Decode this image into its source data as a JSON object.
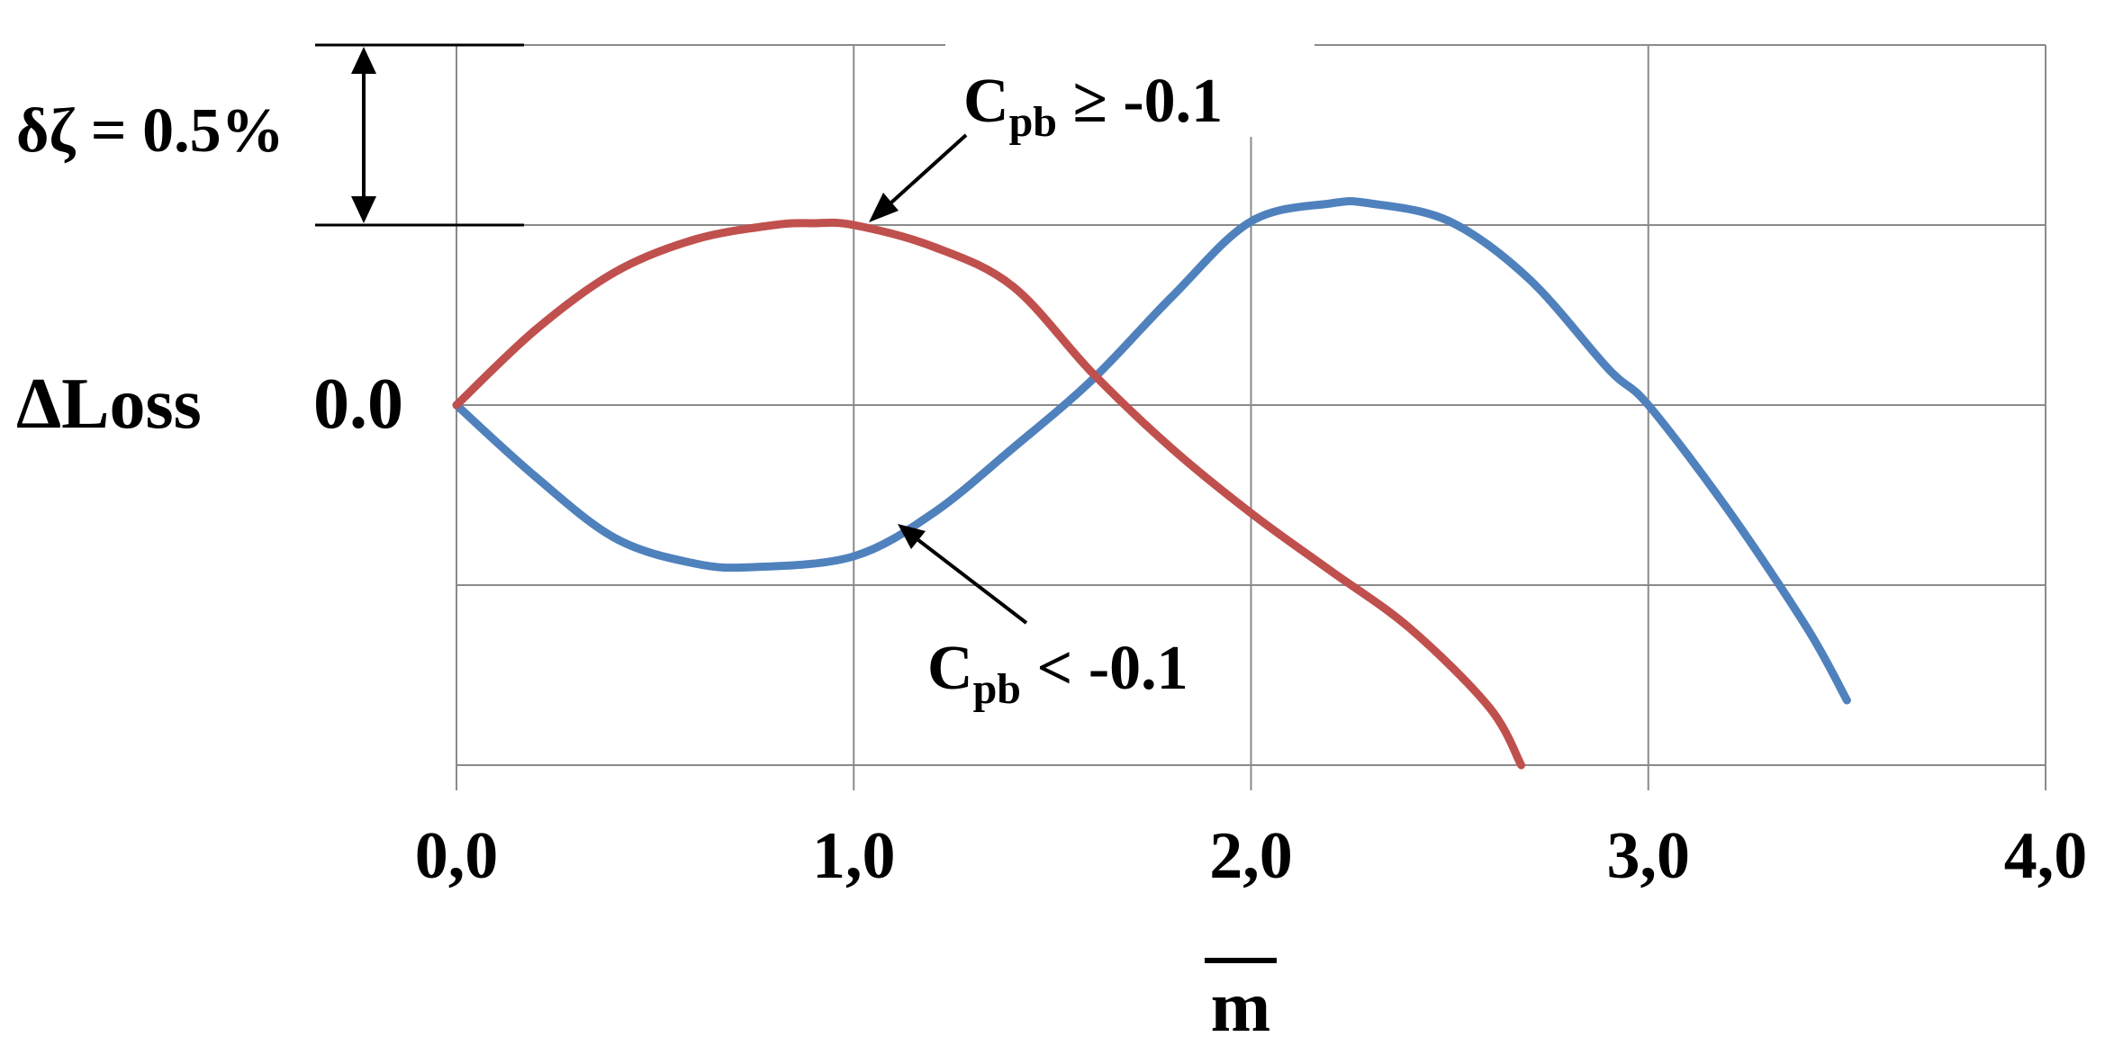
{
  "chart_data": {
    "type": "line",
    "title": "",
    "xlabel": "m",
    "ylabel": "ΔLoss",
    "xlim": [
      0,
      4
    ],
    "ylim": [
      -1.0,
      1.0
    ],
    "y_unit_note": "gridline spacing = δζ = 0.5%",
    "x_ticks": [
      "0,0",
      "1,0",
      "2,0",
      "3,0",
      "4,0"
    ],
    "y_zero_label": "0.0",
    "grid": true,
    "scale_annotation": {
      "label": "δζ = 0.5%",
      "value": 0.5
    },
    "series": [
      {
        "color": "#c0504d",
        "annotation": {
          "prefix": "C",
          "sub": "pb",
          "suffix": " ≥ -0.1"
        },
        "x": [
          0.0,
          0.2,
          0.4,
          0.6,
          0.8,
          0.9,
          1.0,
          1.2,
          1.4,
          1.6,
          1.8,
          2.0,
          2.2,
          2.4,
          2.6,
          2.68
        ],
        "y": [
          0.0,
          0.21,
          0.37,
          0.46,
          0.5,
          0.505,
          0.5,
          0.44,
          0.33,
          0.09,
          -0.12,
          -0.3,
          -0.46,
          -0.62,
          -0.84,
          -1.0
        ]
      },
      {
        "color": "#4f81bd",
        "annotation": {
          "prefix": "C",
          "sub": "pb",
          "suffix": " < -0.1"
        },
        "x": [
          0.0,
          0.2,
          0.4,
          0.6,
          0.75,
          1.0,
          1.2,
          1.4,
          1.6,
          1.8,
          2.0,
          2.2,
          2.3,
          2.5,
          2.7,
          2.9,
          3.0,
          3.2,
          3.4,
          3.5
        ],
        "y": [
          0.0,
          -0.2,
          -0.37,
          -0.44,
          -0.45,
          -0.42,
          -0.3,
          -0.12,
          0.07,
          0.3,
          0.51,
          0.56,
          0.56,
          0.51,
          0.35,
          0.1,
          0.0,
          -0.29,
          -0.62,
          -0.82
        ]
      }
    ]
  }
}
